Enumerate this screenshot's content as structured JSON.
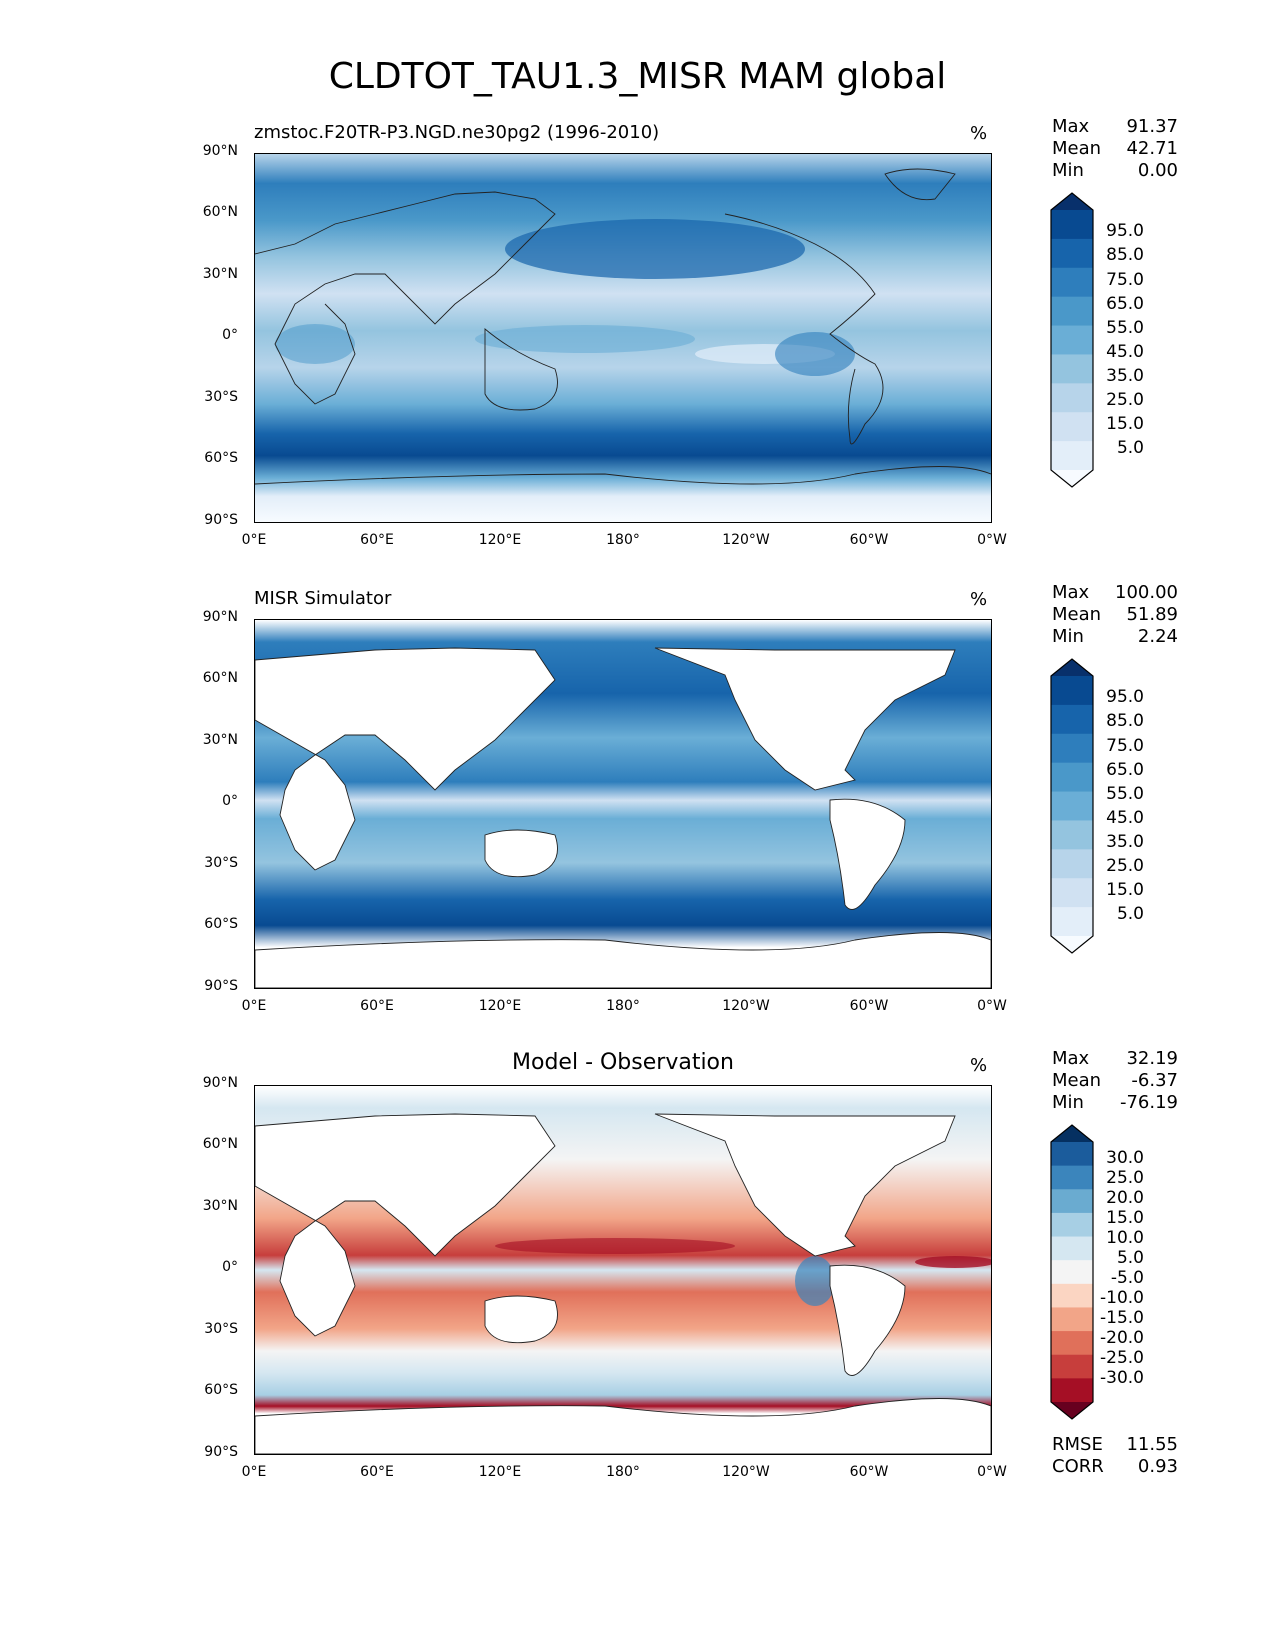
{
  "title": "CLDTOT_TAU1.3_MISR MAM global",
  "axes": {
    "lat_ticks": [
      "90°N",
      "60°N",
      "30°N",
      "0°",
      "30°S",
      "60°S",
      "90°S"
    ],
    "lon_ticks": [
      "0°E",
      "60°E",
      "120°E",
      "180°",
      "120°W",
      "60°W",
      "0°W"
    ]
  },
  "panels": [
    {
      "title": "zmstoc.F20TR-P3.NGD.ne30pg2 (1996-2010)",
      "units": "%",
      "stats": [
        {
          "label": "Max",
          "value": "91.37"
        },
        {
          "label": "Mean",
          "value": "42.71"
        },
        {
          "label": "Min",
          "value": "0.00"
        }
      ],
      "colorbar_ticks": [
        "95.0",
        "85.0",
        "75.0",
        "65.0",
        "55.0",
        "45.0",
        "35.0",
        "25.0",
        "15.0",
        "5.0"
      ],
      "colors": [
        "#f7fbff",
        "#e3eef9",
        "#d0e1f2",
        "#b7d4ea",
        "#94c4df",
        "#6aaed6",
        "#4a98c9",
        "#2e7ebc",
        "#1764ab",
        "#084a91",
        "#08306b"
      ]
    },
    {
      "title": "MISR Simulator",
      "units": "%",
      "stats": [
        {
          "label": "Max",
          "value": "100.00"
        },
        {
          "label": "Mean",
          "value": "51.89"
        },
        {
          "label": "Min",
          "value": "2.24"
        }
      ],
      "colorbar_ticks": [
        "95.0",
        "85.0",
        "75.0",
        "65.0",
        "55.0",
        "45.0",
        "35.0",
        "25.0",
        "15.0",
        "5.0"
      ],
      "colors": [
        "#f7fbff",
        "#e3eef9",
        "#d0e1f2",
        "#b7d4ea",
        "#94c4df",
        "#6aaed6",
        "#4a98c9",
        "#2e7ebc",
        "#1764ab",
        "#084a91",
        "#08306b"
      ]
    },
    {
      "title": "Model - Observation",
      "units": "%",
      "stats": [
        {
          "label": "Max",
          "value": "32.19"
        },
        {
          "label": "Mean",
          "value": "-6.37"
        },
        {
          "label": "Min",
          "value": "-76.19"
        }
      ],
      "colorbar_ticks": [
        "30.0",
        "25.0",
        "20.0",
        "15.0",
        "10.0",
        "5.0",
        "-5.0",
        "-10.0",
        "-15.0",
        "-20.0",
        "-25.0",
        "-30.0"
      ],
      "colors": [
        "#67001f",
        "#a50f25",
        "#c73e3c",
        "#e0705a",
        "#f2a588",
        "#fbd5c2",
        "#f4f4f4",
        "#d5e7f1",
        "#a7cfe4",
        "#6aabd0",
        "#3b85bc",
        "#1b5c9c",
        "#053061"
      ],
      "extra_stats": [
        {
          "label": "RMSE",
          "value": "11.55"
        },
        {
          "label": "CORR",
          "value": "0.93"
        }
      ]
    }
  ]
}
